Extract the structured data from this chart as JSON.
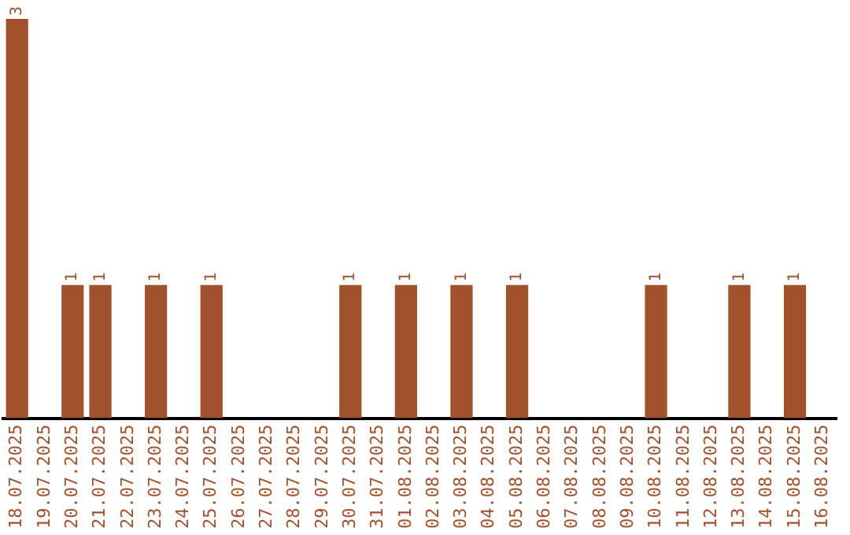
{
  "chart_data": {
    "type": "bar",
    "categories": [
      "18.07.2025",
      "19.07.2025",
      "20.07.2025",
      "21.07.2025",
      "22.07.2025",
      "23.07.2025",
      "24.07.2025",
      "25.07.2025",
      "26.07.2025",
      "27.07.2025",
      "28.07.2025",
      "29.07.2025",
      "30.07.2025",
      "31.07.2025",
      "01.08.2025",
      "02.08.2025",
      "03.08.2025",
      "04.08.2025",
      "05.08.2025",
      "06.08.2025",
      "07.08.2025",
      "08.08.2025",
      "09.08.2025",
      "10.08.2025",
      "11.08.2025",
      "12.08.2025",
      "13.08.2025",
      "14.08.2025",
      "15.08.2025",
      "16.08.2025"
    ],
    "values": [
      3,
      0,
      1,
      1,
      0,
      1,
      0,
      1,
      0,
      0,
      0,
      0,
      1,
      0,
      1,
      0,
      1,
      0,
      1,
      0,
      0,
      0,
      0,
      1,
      0,
      0,
      1,
      0,
      1,
      0
    ],
    "value_labels": [
      "3",
      null,
      "1",
      "1",
      null,
      "1",
      null,
      "1",
      null,
      null,
      null,
      null,
      "1",
      null,
      "1",
      null,
      "1",
      null,
      "1",
      null,
      null,
      null,
      null,
      "1",
      null,
      null,
      "1",
      null,
      "1",
      null
    ],
    "color": "#a0522d",
    "grid": false,
    "legend": false
  }
}
